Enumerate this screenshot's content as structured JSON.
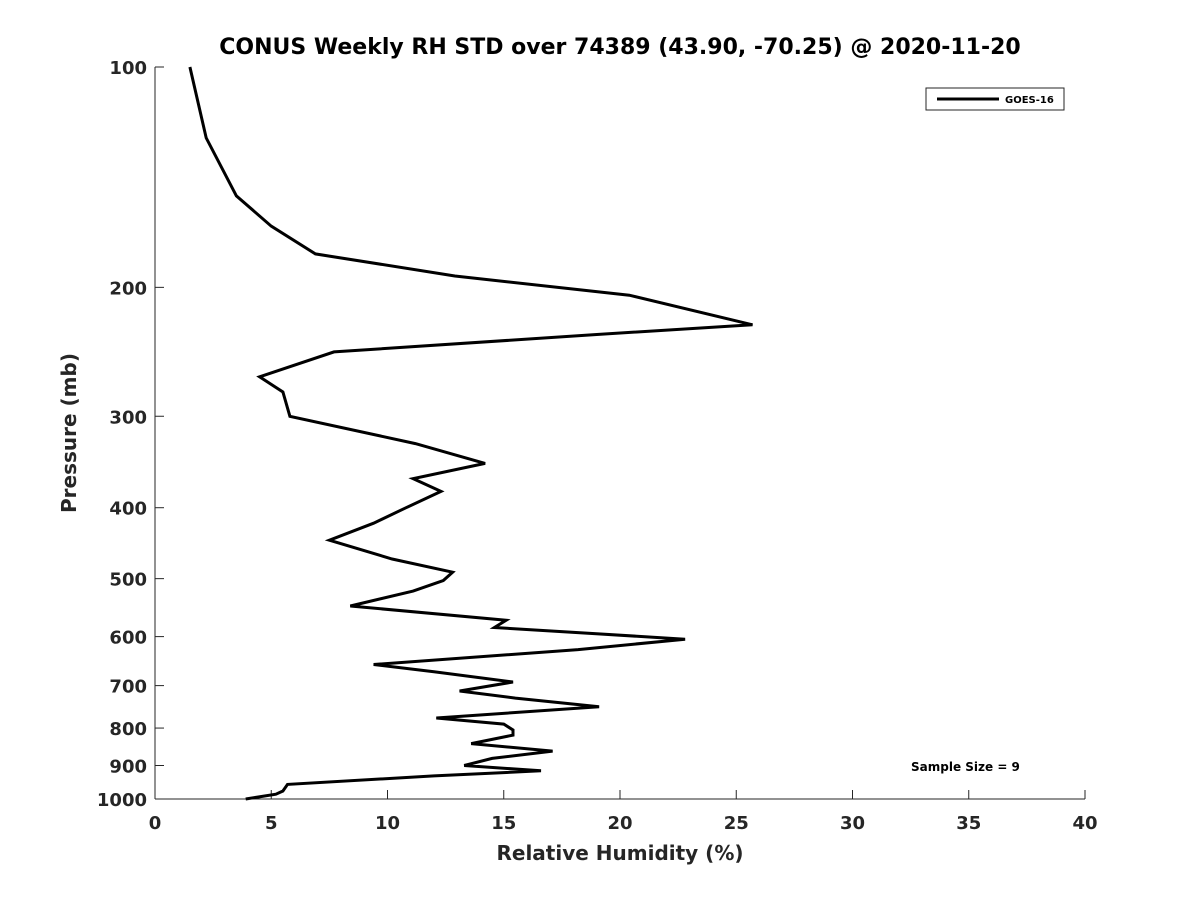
{
  "chart_data": {
    "type": "line",
    "title": "CONUS Weekly RH STD over 74389 (43.90, -70.25) @ 2020-11-20",
    "xlabel": "Relative Humidity (%)",
    "ylabel": "Pressure (mb)",
    "xlim": [
      0,
      40
    ],
    "ylim": [
      100,
      1000
    ],
    "yscale": "log",
    "yreversed": true,
    "grid": false,
    "legend_placement": "top-right",
    "x_ticks": [
      0,
      5,
      10,
      15,
      20,
      25,
      30,
      35,
      40
    ],
    "x_tick_labels": [
      "0",
      "5",
      "10",
      "15",
      "20",
      "25",
      "30",
      "35",
      "40"
    ],
    "y_ticks": [
      100,
      200,
      300,
      400,
      500,
      600,
      700,
      800,
      900,
      1000
    ],
    "y_tick_labels": [
      "100",
      "200",
      "300",
      "400",
      "500",
      "600",
      "700",
      "800",
      "900",
      "1000"
    ],
    "series": [
      {
        "name": "GOES-16",
        "color": "#000000",
        "points": [
          [
            1.5,
            100
          ],
          [
            2.2,
            125
          ],
          [
            3.5,
            150
          ],
          [
            5.0,
            165
          ],
          [
            6.9,
            180
          ],
          [
            12.9,
            193
          ],
          [
            20.4,
            205
          ],
          [
            25.7,
            225
          ],
          [
            19.0,
            232
          ],
          [
            7.7,
            245
          ],
          [
            4.5,
            265
          ],
          [
            5.5,
            278
          ],
          [
            5.8,
            300
          ],
          [
            11.2,
            327
          ],
          [
            14.2,
            348
          ],
          [
            11.1,
            365
          ],
          [
            12.3,
            380
          ],
          [
            10.8,
            400
          ],
          [
            9.4,
            420
          ],
          [
            7.5,
            443
          ],
          [
            10.2,
            470
          ],
          [
            12.8,
            490
          ],
          [
            12.4,
            503
          ],
          [
            11.1,
            520
          ],
          [
            8.4,
            545
          ],
          [
            15.1,
            570
          ],
          [
            14.6,
            583
          ],
          [
            22.8,
            605
          ],
          [
            18.2,
            625
          ],
          [
            9.4,
            655
          ],
          [
            12.0,
            670
          ],
          [
            15.4,
            692
          ],
          [
            13.1,
            712
          ],
          [
            15.5,
            728
          ],
          [
            19.1,
            748
          ],
          [
            12.1,
            775
          ],
          [
            15.0,
            790
          ],
          [
            15.4,
            805
          ],
          [
            15.4,
            818
          ],
          [
            13.6,
            840
          ],
          [
            17.1,
            860
          ],
          [
            14.5,
            880
          ],
          [
            13.3,
            900
          ],
          [
            16.6,
            915
          ],
          [
            12.0,
            930
          ],
          [
            5.7,
            955
          ],
          [
            5.5,
            975
          ],
          [
            5.2,
            985
          ],
          [
            3.9,
            1000
          ]
        ]
      }
    ],
    "annotations": [
      "Sample Size = 9"
    ]
  }
}
